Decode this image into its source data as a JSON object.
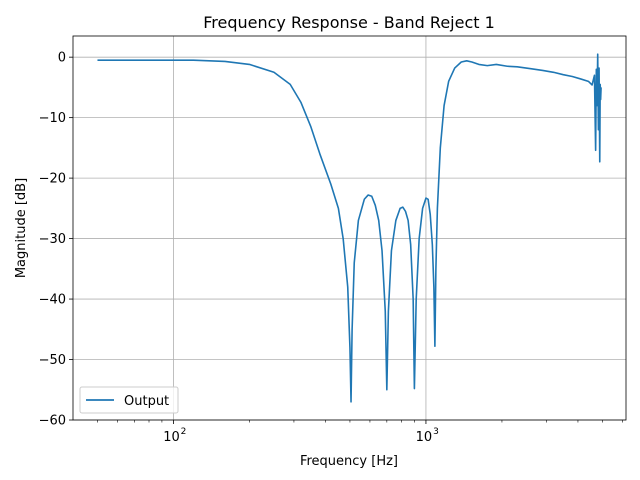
{
  "chart_data": {
    "type": "line",
    "title": "Frequency Response - Band Reject 1",
    "xlabel": "Frequency [Hz]",
    "ylabel": "Magnitude [dB]",
    "xscale": "log",
    "xlim": [
      40,
      6200
    ],
    "ylim": [
      -60,
      3.5
    ],
    "grid": true,
    "legend_position": "lower-left",
    "x_ticks": [
      {
        "value": 100,
        "base": "10",
        "exp": "2"
      },
      {
        "value": 1000,
        "base": "10",
        "exp": "3"
      }
    ],
    "y_ticks": [
      {
        "value": 0,
        "label": "0"
      },
      {
        "value": -10,
        "label": "−10"
      },
      {
        "value": -20,
        "label": "−20"
      },
      {
        "value": -30,
        "label": "−30"
      },
      {
        "value": -40,
        "label": "−40"
      },
      {
        "value": -50,
        "label": "−50"
      },
      {
        "value": -60,
        "label": "−60"
      }
    ],
    "series": [
      {
        "name": "Output",
        "color": "#1f77b4",
        "points": [
          [
            50,
            -0.5
          ],
          [
            80,
            -0.5
          ],
          [
            120,
            -0.5
          ],
          [
            160,
            -0.7
          ],
          [
            200,
            -1.2
          ],
          [
            250,
            -2.5
          ],
          [
            290,
            -4.5
          ],
          [
            320,
            -7.5
          ],
          [
            350,
            -11.5
          ],
          [
            380,
            -16
          ],
          [
            420,
            -21
          ],
          [
            450,
            -25
          ],
          [
            470,
            -30
          ],
          [
            490,
            -38
          ],
          [
            500,
            -48
          ],
          [
            505,
            -57
          ],
          [
            510,
            -45
          ],
          [
            520,
            -34
          ],
          [
            540,
            -27
          ],
          [
            570,
            -23.5
          ],
          [
            590,
            -22.8
          ],
          [
            610,
            -23
          ],
          [
            630,
            -24.5
          ],
          [
            650,
            -27
          ],
          [
            670,
            -32
          ],
          [
            690,
            -42
          ],
          [
            700,
            -55
          ],
          [
            710,
            -42
          ],
          [
            730,
            -32
          ],
          [
            760,
            -27
          ],
          [
            790,
            -25
          ],
          [
            810,
            -24.8
          ],
          [
            830,
            -25.5
          ],
          [
            850,
            -27
          ],
          [
            870,
            -31
          ],
          [
            890,
            -40
          ],
          [
            900,
            -54.8
          ],
          [
            915,
            -40
          ],
          [
            940,
            -30
          ],
          [
            970,
            -25
          ],
          [
            1000,
            -23.3
          ],
          [
            1020,
            -23.5
          ],
          [
            1040,
            -26
          ],
          [
            1060,
            -31
          ],
          [
            1075,
            -38
          ],
          [
            1085,
            -47.8
          ],
          [
            1095,
            -35
          ],
          [
            1110,
            -25
          ],
          [
            1140,
            -15
          ],
          [
            1180,
            -8
          ],
          [
            1230,
            -4
          ],
          [
            1300,
            -1.8
          ],
          [
            1380,
            -0.8
          ],
          [
            1450,
            -0.6
          ],
          [
            1520,
            -0.8
          ],
          [
            1620,
            -1.2
          ],
          [
            1750,
            -1.4
          ],
          [
            1900,
            -1.2
          ],
          [
            2100,
            -1.5
          ],
          [
            2300,
            -1.6
          ],
          [
            2600,
            -1.9
          ],
          [
            2900,
            -2.2
          ],
          [
            3200,
            -2.5
          ],
          [
            3500,
            -2.9
          ],
          [
            3800,
            -3.2
          ],
          [
            4100,
            -3.6
          ],
          [
            4400,
            -4.0
          ],
          [
            4550,
            -4.6
          ],
          [
            4650,
            -3.0
          ],
          [
            4700,
            -15.4
          ],
          [
            4730,
            -2.0
          ],
          [
            4760,
            -8.0
          ],
          [
            4790,
            0.5
          ],
          [
            4820,
            -12.0
          ],
          [
            4850,
            -1.8
          ],
          [
            4880,
            -17.3
          ],
          [
            4900,
            -4.5
          ],
          [
            4920,
            -7.0
          ],
          [
            4940,
            -5.0
          ]
        ]
      }
    ]
  }
}
